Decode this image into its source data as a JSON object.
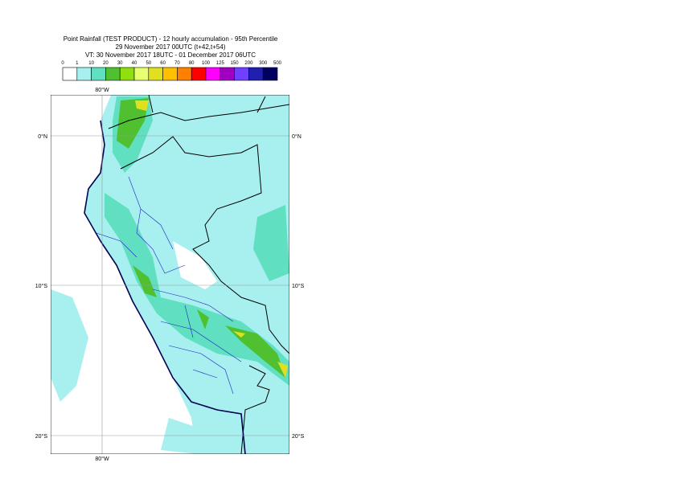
{
  "header": {
    "title": "Point Rainfall (TEST PRODUCT) - 12 hourly accumulation - 95th Percentile",
    "subtitle": "29 November 2017 00UTC (t+42,t+54)",
    "valid_time": "VT: 30 November 2017 18UTC - 01 December 2017 06UTC"
  },
  "colorbar": {
    "levels": [
      0,
      1,
      10,
      20,
      30,
      40,
      50,
      60,
      70,
      80,
      100,
      125,
      150,
      200,
      300,
      500
    ],
    "colors": [
      "#ffffff",
      "#a8f0f0",
      "#60e0c0",
      "#50c030",
      "#90e010",
      "#e8ff70",
      "#e0e020",
      "#ffc000",
      "#ff8000",
      "#ff0000",
      "#ff00ff",
      "#a000c0",
      "#7040ff",
      "#2020b0",
      "#000060"
    ]
  },
  "map": {
    "lon_labels": [
      "80°W",
      "80°W"
    ],
    "lat_labels": [
      "0°N",
      "0°N",
      "10°S",
      "10°S",
      "20°S",
      "20°S"
    ]
  }
}
